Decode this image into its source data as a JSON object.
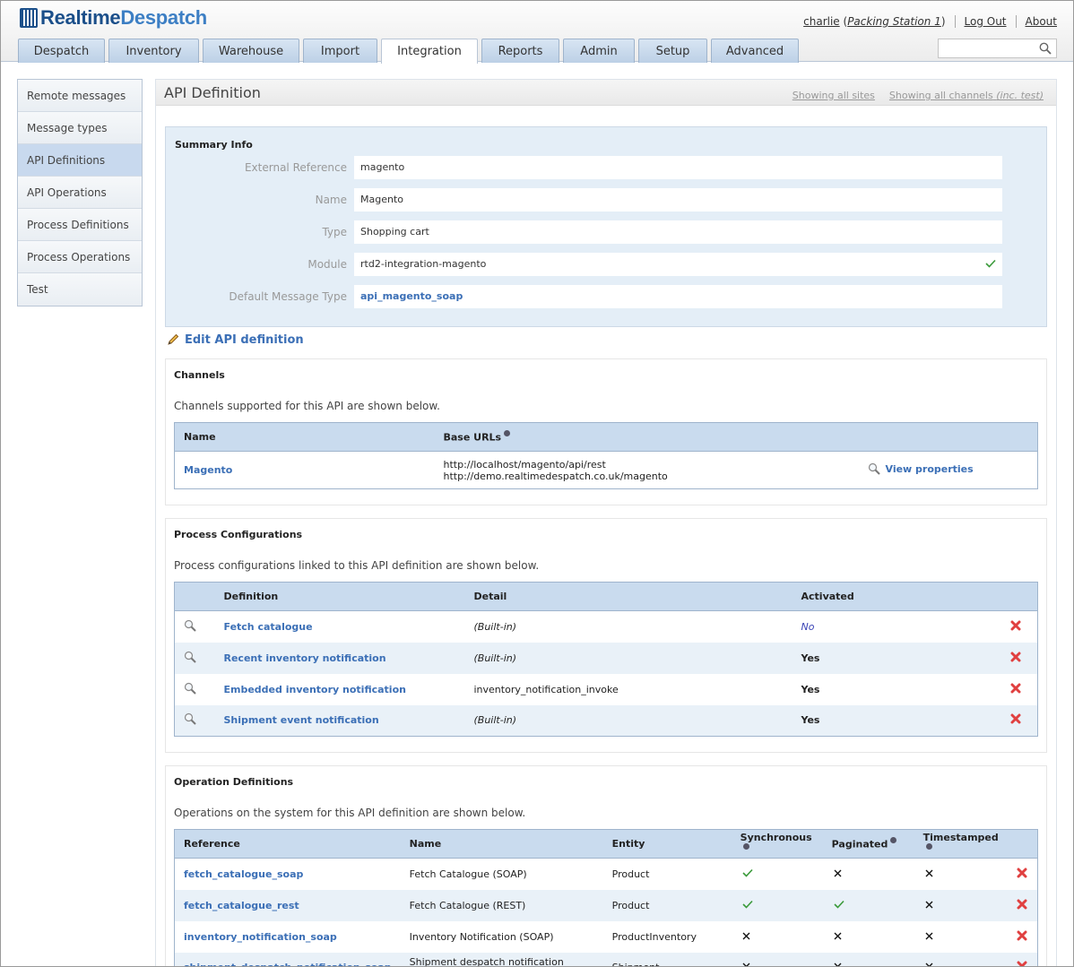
{
  "app": {
    "logo_a": "Realtime",
    "logo_b": "Despatch"
  },
  "user": {
    "name": "charlie",
    "station": "Packing Station 1",
    "logout": "Log Out",
    "about": "About"
  },
  "tabs": [
    {
      "label": "Despatch",
      "width": 97
    },
    {
      "label": "Inventory",
      "width": 101
    },
    {
      "label": "Warehouse",
      "width": 108
    },
    {
      "label": "Import",
      "width": 83
    },
    {
      "label": "Integration",
      "width": 108,
      "active": true
    },
    {
      "label": "Reports",
      "width": 87
    },
    {
      "label": "Admin",
      "width": 80
    },
    {
      "label": "Setup",
      "width": 77
    },
    {
      "label": "Advanced",
      "width": 98
    }
  ],
  "search": {
    "placeholder": ""
  },
  "sidebar": {
    "items": [
      {
        "label": "Remote messages"
      },
      {
        "label": "Message types"
      },
      {
        "label": "API Definitions",
        "active": true
      },
      {
        "label": "API Operations"
      },
      {
        "label": "Process Definitions"
      },
      {
        "label": "Process Operations"
      },
      {
        "label": "Test"
      }
    ]
  },
  "page": {
    "title": "API Definition",
    "showing_sites": "Showing all sites",
    "showing_channels": "Showing all channels",
    "showing_channels_note": "(inc. test)"
  },
  "summary": {
    "title": "Summary Info",
    "fields": [
      {
        "label": "External Reference",
        "value": "magento"
      },
      {
        "label": "Name",
        "value": "Magento"
      },
      {
        "label": "Type",
        "value": "Shopping cart"
      },
      {
        "label": "Module",
        "value": "rtd2-integration-magento"
      },
      {
        "label": "Default Message Type",
        "value": "api_magento_soap"
      }
    ],
    "edit_label": "Edit API definition"
  },
  "channels": {
    "title": "Channels",
    "description": "Channels supported for this API are shown below.",
    "headers": {
      "name": "Name",
      "urls": "Base URLs"
    },
    "rows": [
      {
        "name": "Magento",
        "url1": "http://localhost/magento/api/rest",
        "url2": "http://demo.realtimedespatch.co.uk/magento",
        "action": "View properties"
      }
    ]
  },
  "process": {
    "title": "Process Configurations",
    "description": "Process configurations linked to this API definition are shown below.",
    "headers": {
      "definition": "Definition",
      "detail": "Detail",
      "activated": "Activated"
    },
    "rows": [
      {
        "definition": "Fetch catalogue",
        "detail": "(Built-in)",
        "activated": "No"
      },
      {
        "definition": "Recent inventory notification",
        "detail": "(Built-in)",
        "activated": "Yes"
      },
      {
        "definition": "Embedded inventory notification",
        "detail": "inventory_notification_invoke",
        "activated": "Yes"
      },
      {
        "definition": "Shipment event notification",
        "detail": "(Built-in)",
        "activated": "Yes"
      }
    ]
  },
  "operations": {
    "title": "Operation Definitions",
    "description": "Operations on the system for this API definition are shown below.",
    "headers": {
      "reference": "Reference",
      "name": "Name",
      "entity": "Entity",
      "sync": "Synchronous",
      "paginated": "Paginated",
      "timestamped": "Timestamped"
    },
    "rows": [
      {
        "reference": "fetch_catalogue_soap",
        "name": "Fetch Catalogue (SOAP)",
        "entity": "Product",
        "sync": true,
        "paginated": false,
        "timestamped": false
      },
      {
        "reference": "fetch_catalogue_rest",
        "name": "Fetch Catalogue (REST)",
        "entity": "Product",
        "sync": true,
        "paginated": true,
        "timestamped": false
      },
      {
        "reference": "inventory_notification_soap",
        "name": "Inventory Notification (SOAP)",
        "entity": "ProductInventory",
        "sync": false,
        "paginated": false,
        "timestamped": false
      },
      {
        "reference": "shipment_despatch_notification_soap",
        "name": "Shipment despatch notification (SOAP)",
        "entity": "Shipment",
        "sync": false,
        "paginated": false,
        "timestamped": false
      }
    ]
  }
}
